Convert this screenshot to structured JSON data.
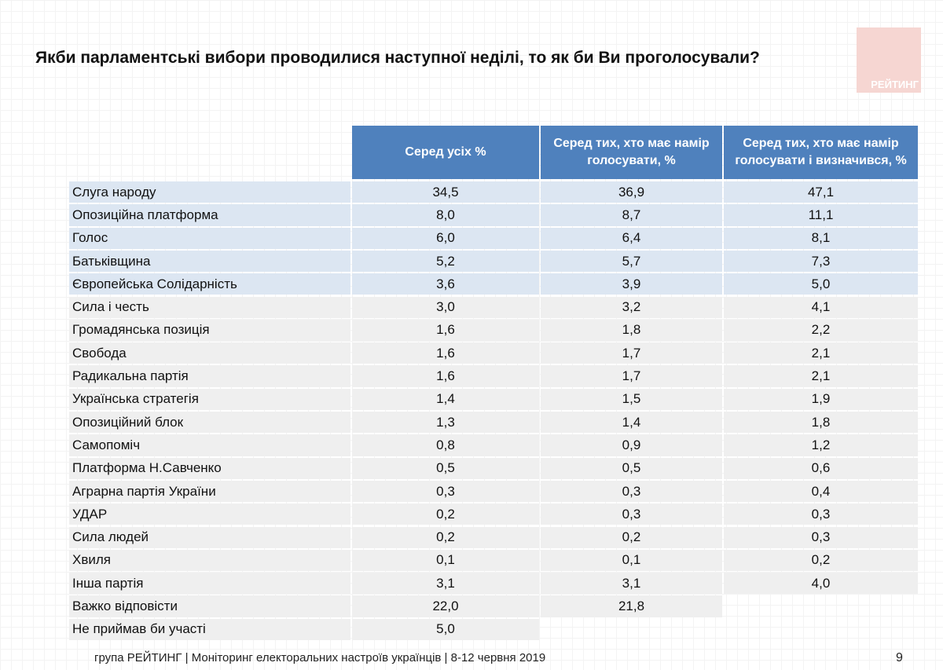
{
  "header": {
    "title": "Якби парламентські вибори проводилися наступної неділі, то як би Ви проголосували?",
    "logo": "РЕЙТИНГ"
  },
  "table": {
    "columns": [
      "Серед усіх %",
      "Серед тих, хто має намір голосувати, %",
      "Серед тих, хто має намір голосувати і визначився, %"
    ],
    "rows": [
      [
        "Слуга народу",
        "34,5",
        "36,9",
        "47,1"
      ],
      [
        "Опозиційна платформа",
        "8,0",
        "8,7",
        "11,1"
      ],
      [
        "Голос",
        "6,0",
        "6,4",
        "8,1"
      ],
      [
        "Батьківщина",
        "5,2",
        "5,7",
        "7,3"
      ],
      [
        "Європейська Солідарність",
        "3,6",
        "3,9",
        "5,0"
      ],
      [
        "Сила і честь",
        "3,0",
        "3,2",
        "4,1"
      ],
      [
        "Громадянська позиція",
        "1,6",
        "1,8",
        "2,2"
      ],
      [
        "Свобода",
        "1,6",
        "1,7",
        "2,1"
      ],
      [
        "Радикальна партія",
        "1,6",
        "1,7",
        "2,1"
      ],
      [
        "Українська стратегія",
        "1,4",
        "1,5",
        "1,9"
      ],
      [
        "Опозиційний блок",
        "1,3",
        "1,4",
        "1,8"
      ],
      [
        "Самопоміч",
        "0,8",
        "0,9",
        "1,2"
      ],
      [
        "Платформа Н.Савченко",
        "0,5",
        "0,5",
        "0,6"
      ],
      [
        "Аграрна партія України",
        "0,3",
        "0,3",
        "0,4"
      ],
      [
        "УДАР",
        "0,2",
        "0,3",
        "0,3"
      ],
      [
        "Сила людей",
        "0,2",
        "0,2",
        "0,3"
      ],
      [
        "Хвиля",
        "0,1",
        "0,1",
        "0,2"
      ],
      [
        "Інша партія",
        "3,1",
        "3,1",
        "4,0"
      ],
      [
        "Важко відповісти",
        "22,0",
        "21,8"
      ],
      [
        "Не приймав би участі",
        "5,0"
      ]
    ]
  },
  "footer": {
    "source": "група РЕЙТИНГ | Моніторинг електоральних настроїв українців  | 8-12 червня 2019",
    "page": "9"
  }
}
